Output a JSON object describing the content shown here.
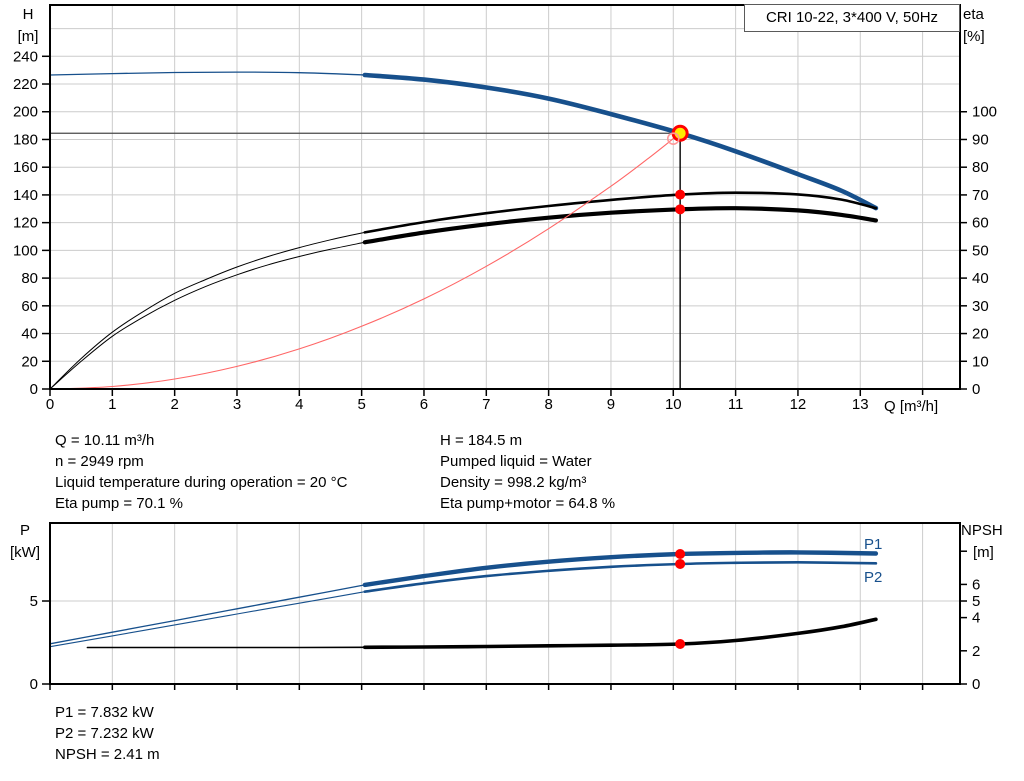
{
  "window": {
    "title_box": "CRI 10-22, 3*400 V, 50Hz"
  },
  "colors": {
    "curve_blue": "#17508C",
    "curve_black": "#000000",
    "system_red": "#FF6666",
    "marker_red": "#FF0000",
    "duty_fill": "#FFEB00",
    "open_ring": "#FF9999",
    "grid": "#CCCCCC",
    "axis": "#000000",
    "duty_line": "#4A4A4A"
  },
  "info": {
    "left": [
      "Q = 10.11 m³/h",
      "n = 2949 rpm",
      "Liquid temperature during operation = 20 °C",
      "Eta pump = 70.1 %"
    ],
    "right": [
      "H = 184.5 m",
      "Pumped liquid = Water",
      "Density = 998.2 kg/m³",
      "Eta pump+motor = 64.8 %"
    ],
    "results": [
      "P1 = 7.832 kW",
      "P2 = 7.232 kW",
      "NPSH = 2.41 m"
    ]
  },
  "chart_data": [
    {
      "type": "line",
      "title": "QH and efficiency curves",
      "x_axis": {
        "label": "Q [m³/h]",
        "range": [
          0,
          14.6
        ],
        "ticks": [
          0,
          1,
          2,
          3,
          4,
          5,
          6,
          7,
          8,
          9,
          10,
          11,
          12,
          13
        ],
        "extra_ticks": [
          14
        ],
        "grid": [
          1,
          2,
          3,
          4,
          5,
          6,
          7,
          8,
          9,
          10,
          11,
          12,
          13,
          14
        ]
      },
      "left_axis": {
        "label_lines": [
          "H",
          "[m]"
        ],
        "range": [
          0,
          277
        ],
        "ticks": [
          0,
          20,
          40,
          60,
          80,
          100,
          120,
          140,
          160,
          180,
          200,
          220,
          240
        ],
        "grid": [
          20,
          40,
          60,
          80,
          100,
          120,
          140,
          160,
          180,
          200,
          220,
          240,
          260
        ]
      },
      "right_axis": {
        "label_lines": [
          "eta",
          "[%]"
        ],
        "range": [
          0,
          138.5
        ],
        "ticks": [
          0,
          10,
          20,
          30,
          40,
          50,
          60,
          70,
          80,
          90,
          100
        ],
        "extra_ticks": []
      },
      "duty_lines": [
        {
          "axis": "left_axis",
          "from": [
            0,
            184.5
          ],
          "to": [
            10.11,
            184.5
          ],
          "color": "#4A4A4A",
          "w": 1.3
        },
        {
          "axis": "left_axis",
          "from": [
            10.11,
            0
          ],
          "to": [
            10.11,
            184.5
          ],
          "color": "#000000",
          "w": 1.4
        }
      ],
      "series": [
        {
          "name": "H",
          "axis": "left_axis",
          "color": "#17508C",
          "split": 5.05,
          "thin": 1.3,
          "thick": 4.6,
          "points": [
            [
              0,
              226.5
            ],
            [
              1,
              227.5
            ],
            [
              2,
              228.3
            ],
            [
              3,
              228.6
            ],
            [
              4,
              228.2
            ],
            [
              5.05,
              226.5
            ],
            [
              6,
              223.2
            ],
            [
              7,
              217.5
            ],
            [
              8,
              209.5
            ],
            [
              9,
              198.3
            ],
            [
              10.11,
              184.5
            ],
            [
              11,
              171.5
            ],
            [
              12,
              155
            ],
            [
              12.7,
              143
            ],
            [
              13.25,
              130.5
            ]
          ]
        },
        {
          "name": "eta pump",
          "axis": "right_axis",
          "color": "#000000",
          "split": 5.05,
          "thin": 1.0,
          "thick": 2.6,
          "points": [
            [
              0,
              0
            ],
            [
              0.5,
              11
            ],
            [
              1,
              20.5
            ],
            [
              1.5,
              28
            ],
            [
              2,
              34.5
            ],
            [
              2.5,
              39.5
            ],
            [
              3,
              44
            ],
            [
              3.5,
              47.8
            ],
            [
              4,
              51
            ],
            [
              4.5,
              53.8
            ],
            [
              5.05,
              56.5
            ],
            [
              6,
              60.2
            ],
            [
              7,
              63.4
            ],
            [
              8,
              66
            ],
            [
              9,
              68.2
            ],
            [
              10.11,
              70.1
            ],
            [
              11,
              70.8
            ],
            [
              12,
              70.2
            ],
            [
              12.7,
              68.3
            ],
            [
              13.25,
              65.2
            ]
          ]
        },
        {
          "name": "eta pump+motor",
          "axis": "right_axis",
          "color": "#000000",
          "split": 5.05,
          "thin": 1.0,
          "thick": 4.2,
          "points": [
            [
              0,
              0
            ],
            [
              0.5,
              10
            ],
            [
              1,
              19
            ],
            [
              1.5,
              26
            ],
            [
              2,
              32
            ],
            [
              2.5,
              37
            ],
            [
              3,
              41.2
            ],
            [
              3.5,
              44.8
            ],
            [
              4,
              47.8
            ],
            [
              4.5,
              50.4
            ],
            [
              5.05,
              52.9
            ],
            [
              6,
              56.4
            ],
            [
              7,
              59.4
            ],
            [
              8,
              61.8
            ],
            [
              9,
              63.6
            ],
            [
              10.11,
              64.8
            ],
            [
              11,
              65.2
            ],
            [
              12,
              64.4
            ],
            [
              12.7,
              62.8
            ],
            [
              13.25,
              60.8
            ]
          ]
        },
        {
          "name": "system curve",
          "axis": "left_axis",
          "color": "#FF6666",
          "split": null,
          "thin": 1.1,
          "thick": 1.1,
          "points": [
            [
              0,
              0
            ],
            [
              1,
              1.8
            ],
            [
              2,
              7.2
            ],
            [
              3,
              16.3
            ],
            [
              4,
              28.9
            ],
            [
              5,
              45.2
            ],
            [
              6,
              65
            ],
            [
              7,
              88.5
            ],
            [
              8,
              115.6
            ],
            [
              9,
              146.3
            ],
            [
              9.6,
              166.4
            ],
            [
              10,
              180.6
            ]
          ]
        }
      ],
      "markers": [
        {
          "name": "duty-point-marker",
          "axis": "left_axis",
          "q": 10.11,
          "v": 184.5,
          "style": "duty"
        },
        {
          "name": "eta-pump-point",
          "axis": "right_axis",
          "q": 10.11,
          "v": 70.1,
          "style": "dot"
        },
        {
          "name": "eta-pump-motor-point",
          "axis": "right_axis",
          "q": 10.11,
          "v": 64.8,
          "style": "dot"
        },
        {
          "name": "system-curve-intersection",
          "axis": "left_axis",
          "q": 10,
          "v": 180.6,
          "style": "open"
        }
      ]
    },
    {
      "type": "line",
      "title": "Power and NPSH curves",
      "x_axis": {
        "label": "",
        "range": [
          0,
          14.6
        ],
        "ticks": [],
        "extra_ticks": [
          0,
          1,
          2,
          3,
          4,
          5,
          6,
          7,
          8,
          9,
          10,
          11,
          12,
          13,
          14
        ],
        "grid": [
          1,
          2,
          3,
          4,
          5,
          6,
          7,
          8,
          9,
          10,
          11,
          12,
          13,
          14
        ]
      },
      "left_axis": {
        "label_lines": [
          "P",
          "[kW]"
        ],
        "range": [
          0,
          9.7
        ],
        "ticks": [
          0,
          5
        ],
        "grid": [
          5
        ]
      },
      "right_axis": {
        "label_lines": [
          "NPSH",
          "[m]"
        ],
        "range": [
          0,
          9.7
        ],
        "ticks": [
          0,
          2,
          4,
          5,
          6
        ],
        "extra_ticks": [
          8
        ]
      },
      "duty_lines": [],
      "series": [
        {
          "name": "P1",
          "axis": "left_axis",
          "color": "#17508C",
          "split": 5.05,
          "thin": 1.3,
          "thick": 4.4,
          "points": [
            [
              0,
              2.42
            ],
            [
              1,
              3.12
            ],
            [
              2,
              3.82
            ],
            [
              3,
              4.53
            ],
            [
              4,
              5.23
            ],
            [
              5.05,
              5.97
            ],
            [
              6,
              6.5
            ],
            [
              7,
              7.0
            ],
            [
              8,
              7.37
            ],
            [
              9,
              7.64
            ],
            [
              10.11,
              7.832
            ],
            [
              11,
              7.9
            ],
            [
              12,
              7.93
            ],
            [
              13.25,
              7.86
            ]
          ]
        },
        {
          "name": "P2",
          "axis": "left_axis",
          "color": "#17508C",
          "split": 5.05,
          "thin": 1.1,
          "thick": 2.6,
          "points": [
            [
              0,
              2.25
            ],
            [
              1,
              2.9
            ],
            [
              2,
              3.56
            ],
            [
              3,
              4.22
            ],
            [
              4,
              4.87
            ],
            [
              5.05,
              5.56
            ],
            [
              6,
              6.07
            ],
            [
              7,
              6.5
            ],
            [
              8,
              6.82
            ],
            [
              9,
              7.06
            ],
            [
              10.11,
              7.232
            ],
            [
              11,
              7.3
            ],
            [
              12,
              7.33
            ],
            [
              13.25,
              7.27
            ]
          ]
        },
        {
          "name": "NPSH",
          "axis": "right_axis",
          "color": "#000000",
          "split": 5.05,
          "thin": 1.6,
          "thick": 3.6,
          "points": [
            [
              0.6,
              2.2
            ],
            [
              2,
              2.2
            ],
            [
              4,
              2.2
            ],
            [
              5.05,
              2.21
            ],
            [
              6,
              2.23
            ],
            [
              7,
              2.26
            ],
            [
              8,
              2.3
            ],
            [
              9,
              2.34
            ],
            [
              10.11,
              2.41
            ],
            [
              11,
              2.62
            ],
            [
              12,
              3.05
            ],
            [
              12.7,
              3.45
            ],
            [
              13.25,
              3.9
            ]
          ]
        }
      ],
      "markers": [
        {
          "name": "p1-point",
          "axis": "left_axis",
          "q": 10.11,
          "v": 7.832,
          "style": "dot"
        },
        {
          "name": "p2-point",
          "axis": "left_axis",
          "q": 10.11,
          "v": 7.232,
          "style": "dot"
        },
        {
          "name": "npsh-point",
          "axis": "right_axis",
          "q": 10.11,
          "v": 2.41,
          "style": "dot"
        }
      ]
    }
  ]
}
